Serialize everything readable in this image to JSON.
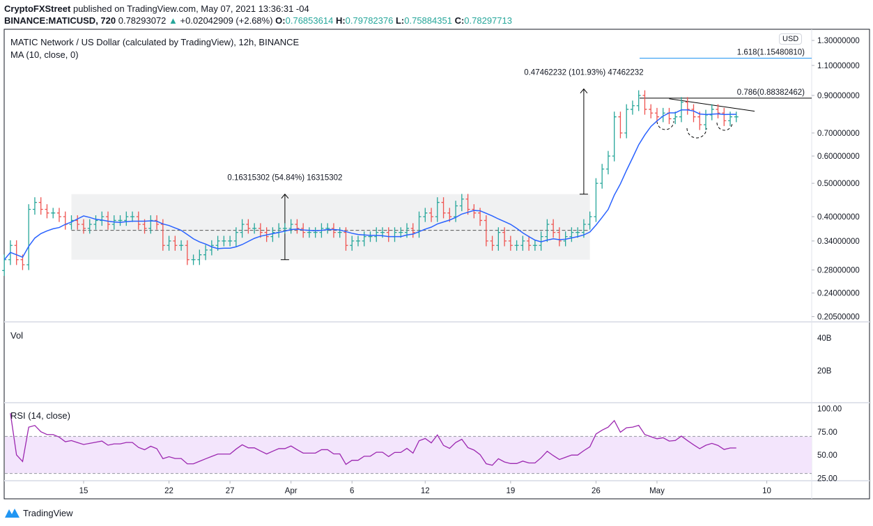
{
  "header": {
    "publisher": "CryptoFXStreet",
    "published_text": "published on TradingView.com, May 07, 2021 13:36:31 -04",
    "symbol": "BINANCE:MATICUSD, 720",
    "last": "0.78293072",
    "change": "+0.02042909 (+2.68%)",
    "o_label": "O:",
    "o": "0.76853614",
    "h_label": "H:",
    "h": "0.79782376",
    "l_label": "L:",
    "l": "0.75884351",
    "c_label": "C:",
    "c": "0.78297713"
  },
  "legend": {
    "title": "MATIC Network / US Dollar (calculated by TradingView), 12h, BINANCE",
    "ma": "MA (10, close, 0)",
    "vol": "Vol",
    "rsi": "RSI (14, close)"
  },
  "currency_button": "USD",
  "footer": {
    "brand": "TradingView"
  },
  "colors": {
    "up": "#26a69a",
    "down": "#ef5350",
    "ma": "#2962ff",
    "rsi": "#9c27b0",
    "rsi_band": "#f3e5fc",
    "fib_1618": "#2196f3"
  },
  "chart_data": {
    "type": "ohlc",
    "price_scale": "log",
    "interval": "12h",
    "start": "2021-03-08 12:00",
    "closes": [
      0.3,
      0.33,
      0.3,
      0.29,
      0.42,
      0.44,
      0.42,
      0.41,
      0.41,
      0.4,
      0.38,
      0.39,
      0.38,
      0.37,
      0.38,
      0.39,
      0.4,
      0.38,
      0.39,
      0.39,
      0.4,
      0.4,
      0.38,
      0.37,
      0.39,
      0.38,
      0.33,
      0.34,
      0.33,
      0.33,
      0.3,
      0.3,
      0.31,
      0.32,
      0.33,
      0.34,
      0.34,
      0.34,
      0.36,
      0.38,
      0.37,
      0.37,
      0.36,
      0.35,
      0.36,
      0.37,
      0.37,
      0.38,
      0.37,
      0.36,
      0.36,
      0.36,
      0.37,
      0.37,
      0.36,
      0.36,
      0.33,
      0.34,
      0.34,
      0.35,
      0.35,
      0.36,
      0.36,
      0.35,
      0.36,
      0.36,
      0.37,
      0.36,
      0.4,
      0.41,
      0.4,
      0.44,
      0.41,
      0.4,
      0.43,
      0.45,
      0.42,
      0.41,
      0.39,
      0.34,
      0.33,
      0.36,
      0.34,
      0.33,
      0.33,
      0.34,
      0.33,
      0.33,
      0.35,
      0.38,
      0.36,
      0.34,
      0.35,
      0.36,
      0.36,
      0.38,
      0.4,
      0.5,
      0.55,
      0.6,
      0.78,
      0.7,
      0.82,
      0.84,
      0.9,
      0.82,
      0.8,
      0.78,
      0.8,
      0.77,
      0.78,
      0.86,
      0.82,
      0.78,
      0.74,
      0.79,
      0.82,
      0.8,
      0.76,
      0.78,
      0.78
    ],
    "ma_period": 10,
    "rsi_period": 14,
    "price_ticks": [
      "1.30000000",
      "1.10000000",
      "0.90000000",
      "0.70000000",
      "0.60000000",
      "0.50000000",
      "0.40000000",
      "0.34000000",
      "0.28000000",
      "0.24000000",
      "0.20500000"
    ],
    "volume_ticks": [
      "40B",
      "20B"
    ],
    "rsi_ticks": [
      "100.00",
      "75.00",
      "50.00",
      "25.00"
    ],
    "rsi_bands": [
      30,
      70
    ],
    "time_ticks": [
      {
        "label": "15",
        "date": "2021-03-15"
      },
      {
        "label": "22",
        "date": "2021-03-22"
      },
      {
        "label": "27",
        "date": "2021-03-27"
      },
      {
        "label": "Apr",
        "date": "2021-04-01"
      },
      {
        "label": "6",
        "date": "2021-04-06"
      },
      {
        "label": "12",
        "date": "2021-04-12"
      },
      {
        "label": "19",
        "date": "2021-04-19"
      },
      {
        "label": "26",
        "date": "2021-04-26"
      },
      {
        "label": "May",
        "date": "2021-05-01"
      },
      {
        "label": "10",
        "date": "2021-05-10"
      }
    ],
    "annotations": {
      "range_box": {
        "from": "2021-03-14",
        "to": "2021-04-25 12:00",
        "low": 0.3,
        "high": 0.465,
        "mid": 0.365
      },
      "range_measure": {
        "date": "2021-03-31 12:00",
        "low": 0.3,
        "high": 0.465,
        "label": "0.16315302 (54.84%) 16315302"
      },
      "breakout_measure": {
        "date": "2021-04-25",
        "low": 0.465,
        "high": 0.94,
        "label": "0.47462232 (101.93%) 47462232"
      },
      "fib_0786": {
        "label": "0.786(0.88382462)",
        "price": 0.8838
      },
      "fib_1618": {
        "label": "1.618(1.15480810)",
        "price": 1.1548
      },
      "trendline": {
        "from": {
          "date": "2021-05-02",
          "price": 0.88
        },
        "to": {
          "date": "2021-05-09",
          "price": 0.81
        }
      }
    }
  }
}
